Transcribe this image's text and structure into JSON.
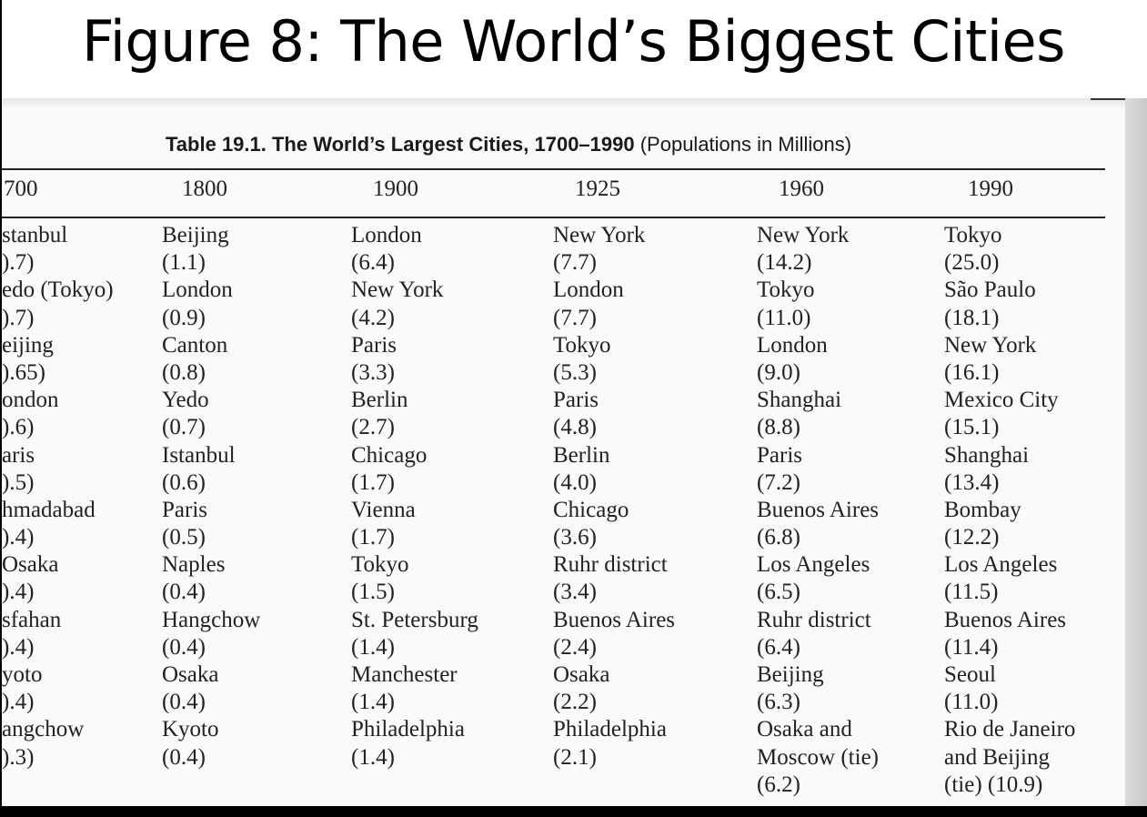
{
  "slide": {
    "title": "Figure 8: The World’s Biggest Cities"
  },
  "table": {
    "title_bold": "Table 19.1. The World’s Largest Cities, 1700–1990",
    "title_rest": " (Populations in Millions)",
    "years": [
      "700",
      "1800",
      "1900",
      "1925",
      "1960",
      "1990"
    ],
    "columns": [
      [
        "stanbul",
        ").7)",
        "edo (Tokyo)",
        ").7)",
        "eijing",
        ").65)",
        "ondon",
        ").6)",
        "aris",
        ").5)",
        "hmadabad",
        ").4)",
        "Osaka",
        ").4)",
        "sfahan",
        ").4)",
        "yoto",
        ").4)",
        "angchow",
        ").3)"
      ],
      [
        "Beijing",
        "(1.1)",
        "London",
        "(0.9)",
        "Canton",
        "(0.8)",
        "Yedo",
        "(0.7)",
        "Istanbul",
        "(0.6)",
        "Paris",
        "(0.5)",
        "Naples",
        "(0.4)",
        "Hangchow",
        "(0.4)",
        "Osaka",
        "(0.4)",
        "Kyoto",
        "(0.4)"
      ],
      [
        "London",
        "(6.4)",
        "New York",
        "(4.2)",
        "Paris",
        "(3.3)",
        "Berlin",
        "(2.7)",
        "Chicago",
        "(1.7)",
        "Vienna",
        "(1.7)",
        "Tokyo",
        "(1.5)",
        "St. Petersburg",
        "(1.4)",
        "Manchester",
        "(1.4)",
        "Philadelphia",
        "(1.4)"
      ],
      [
        "New York",
        "(7.7)",
        "London",
        "(7.7)",
        "Tokyo",
        "(5.3)",
        "Paris",
        "(4.8)",
        "Berlin",
        "(4.0)",
        "Chicago",
        "(3.6)",
        "Ruhr district",
        "(3.4)",
        "Buenos Aires",
        "(2.4)",
        "Osaka",
        "(2.2)",
        "Philadelphia",
        "(2.1)"
      ],
      [
        "New York",
        "(14.2)",
        "Tokyo",
        "(11.0)",
        "London",
        "(9.0)",
        "Shanghai",
        "(8.8)",
        "Paris",
        "(7.2)",
        "Buenos Aires",
        "(6.8)",
        "Los Angeles",
        "(6.5)",
        "Ruhr district",
        "(6.4)",
        "Beijing",
        "(6.3)",
        "Osaka and",
        "Moscow (tie)",
        "(6.2)"
      ],
      [
        "Tokyo",
        "(25.0)",
        "São Paulo",
        "(18.1)",
        "New York",
        "(16.1)",
        "Mexico City",
        "(15.1)",
        "Shanghai",
        "(13.4)",
        "Bombay",
        "(12.2)",
        "Los Angeles",
        "(11.5)",
        "Buenos Aires",
        "(11.4)",
        "Seoul",
        "(11.0)",
        "Rio de Janeiro",
        "and Beijing",
        "(tie) (10.9)"
      ]
    ]
  }
}
